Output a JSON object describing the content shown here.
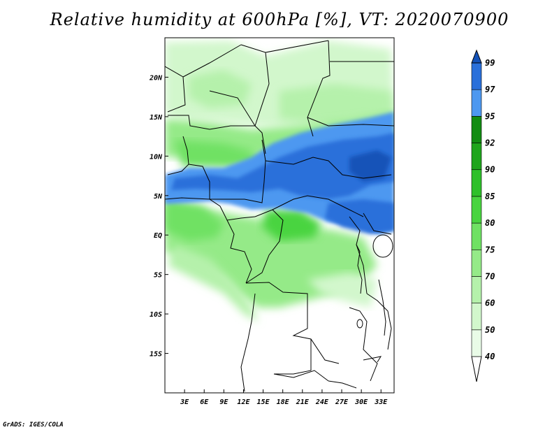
{
  "title": "Relative humidity at 600hPa [%], VT: 2020070900",
  "footer": "GrADS: IGES/COLA",
  "lat_labels": [
    "20N",
    "15N",
    "10N",
    "5N",
    "EQ",
    "5S",
    "10S",
    "15S"
  ],
  "lat_values": [
    20,
    15,
    10,
    5,
    0,
    -5,
    -10,
    -15
  ],
  "lon_labels": [
    "3E",
    "6E",
    "9E",
    "12E",
    "15E",
    "18E",
    "21E",
    "24E",
    "27E",
    "30E",
    "33E"
  ],
  "lon_values": [
    3,
    6,
    9,
    12,
    15,
    18,
    21,
    24,
    27,
    30,
    33
  ],
  "map_extent": {
    "lon_min": 0,
    "lon_max": 35,
    "lat_min": -20,
    "lat_max": 25
  },
  "colorbar": {
    "labels": [
      "40",
      "50",
      "60",
      "70",
      "75",
      "80",
      "85",
      "90",
      "92",
      "95",
      "97",
      "99"
    ],
    "colors": [
      "#ffffff",
      "#e9fbe7",
      "#d2f7cc",
      "#b5f1ab",
      "#95ea88",
      "#6fe163",
      "#48d43f",
      "#2ec02a",
      "#1fa51c",
      "#128c12",
      "#4d98f0",
      "#2a70da",
      "#1452b8"
    ]
  }
}
